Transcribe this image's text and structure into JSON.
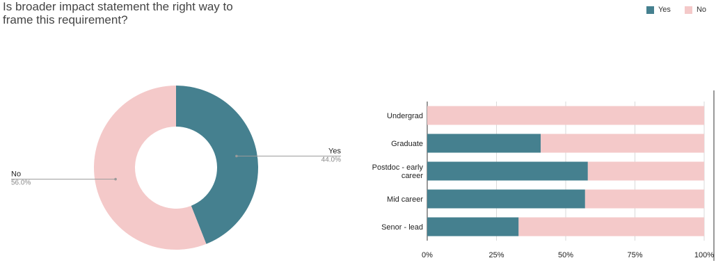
{
  "title_lines": [
    "Is broader impact statement the right way to",
    "frame this requirement?"
  ],
  "legend": [
    {
      "label": "Yes",
      "color": "#45808f"
    },
    {
      "label": "No",
      "color": "#f4c9c9"
    }
  ],
  "chart_data": [
    {
      "type": "pie",
      "title": "Is broader impact statement the right way to frame this requirement?",
      "donut": true,
      "slices": [
        {
          "label": "Yes",
          "value": 44.0,
          "display": "44.0%",
          "color": "#45808f"
        },
        {
          "label": "No",
          "value": 56.0,
          "display": "56.0%",
          "color": "#f4c9c9"
        }
      ]
    },
    {
      "type": "bar",
      "orientation": "horizontal",
      "stacked": "percent",
      "categories": [
        "Undergrad",
        "Graduate",
        "Postdoc - early career",
        "Mid career",
        "Senor - lead"
      ],
      "category_lines": [
        [
          "Undergrad"
        ],
        [
          "Graduate"
        ],
        [
          "Postdoc - early",
          "career"
        ],
        [
          "Mid career"
        ],
        [
          "Senor - lead"
        ]
      ],
      "series": [
        {
          "name": "Yes",
          "color": "#45808f",
          "values": [
            0,
            41,
            58,
            57,
            33
          ]
        },
        {
          "name": "No",
          "color": "#f4c9c9",
          "values": [
            100,
            59,
            42,
            43,
            67
          ]
        }
      ],
      "xlim": [
        0,
        100
      ],
      "xticks": [
        "0%",
        "25%",
        "50%",
        "75%",
        "100%"
      ],
      "grid": true,
      "legend": "top-right"
    }
  ]
}
